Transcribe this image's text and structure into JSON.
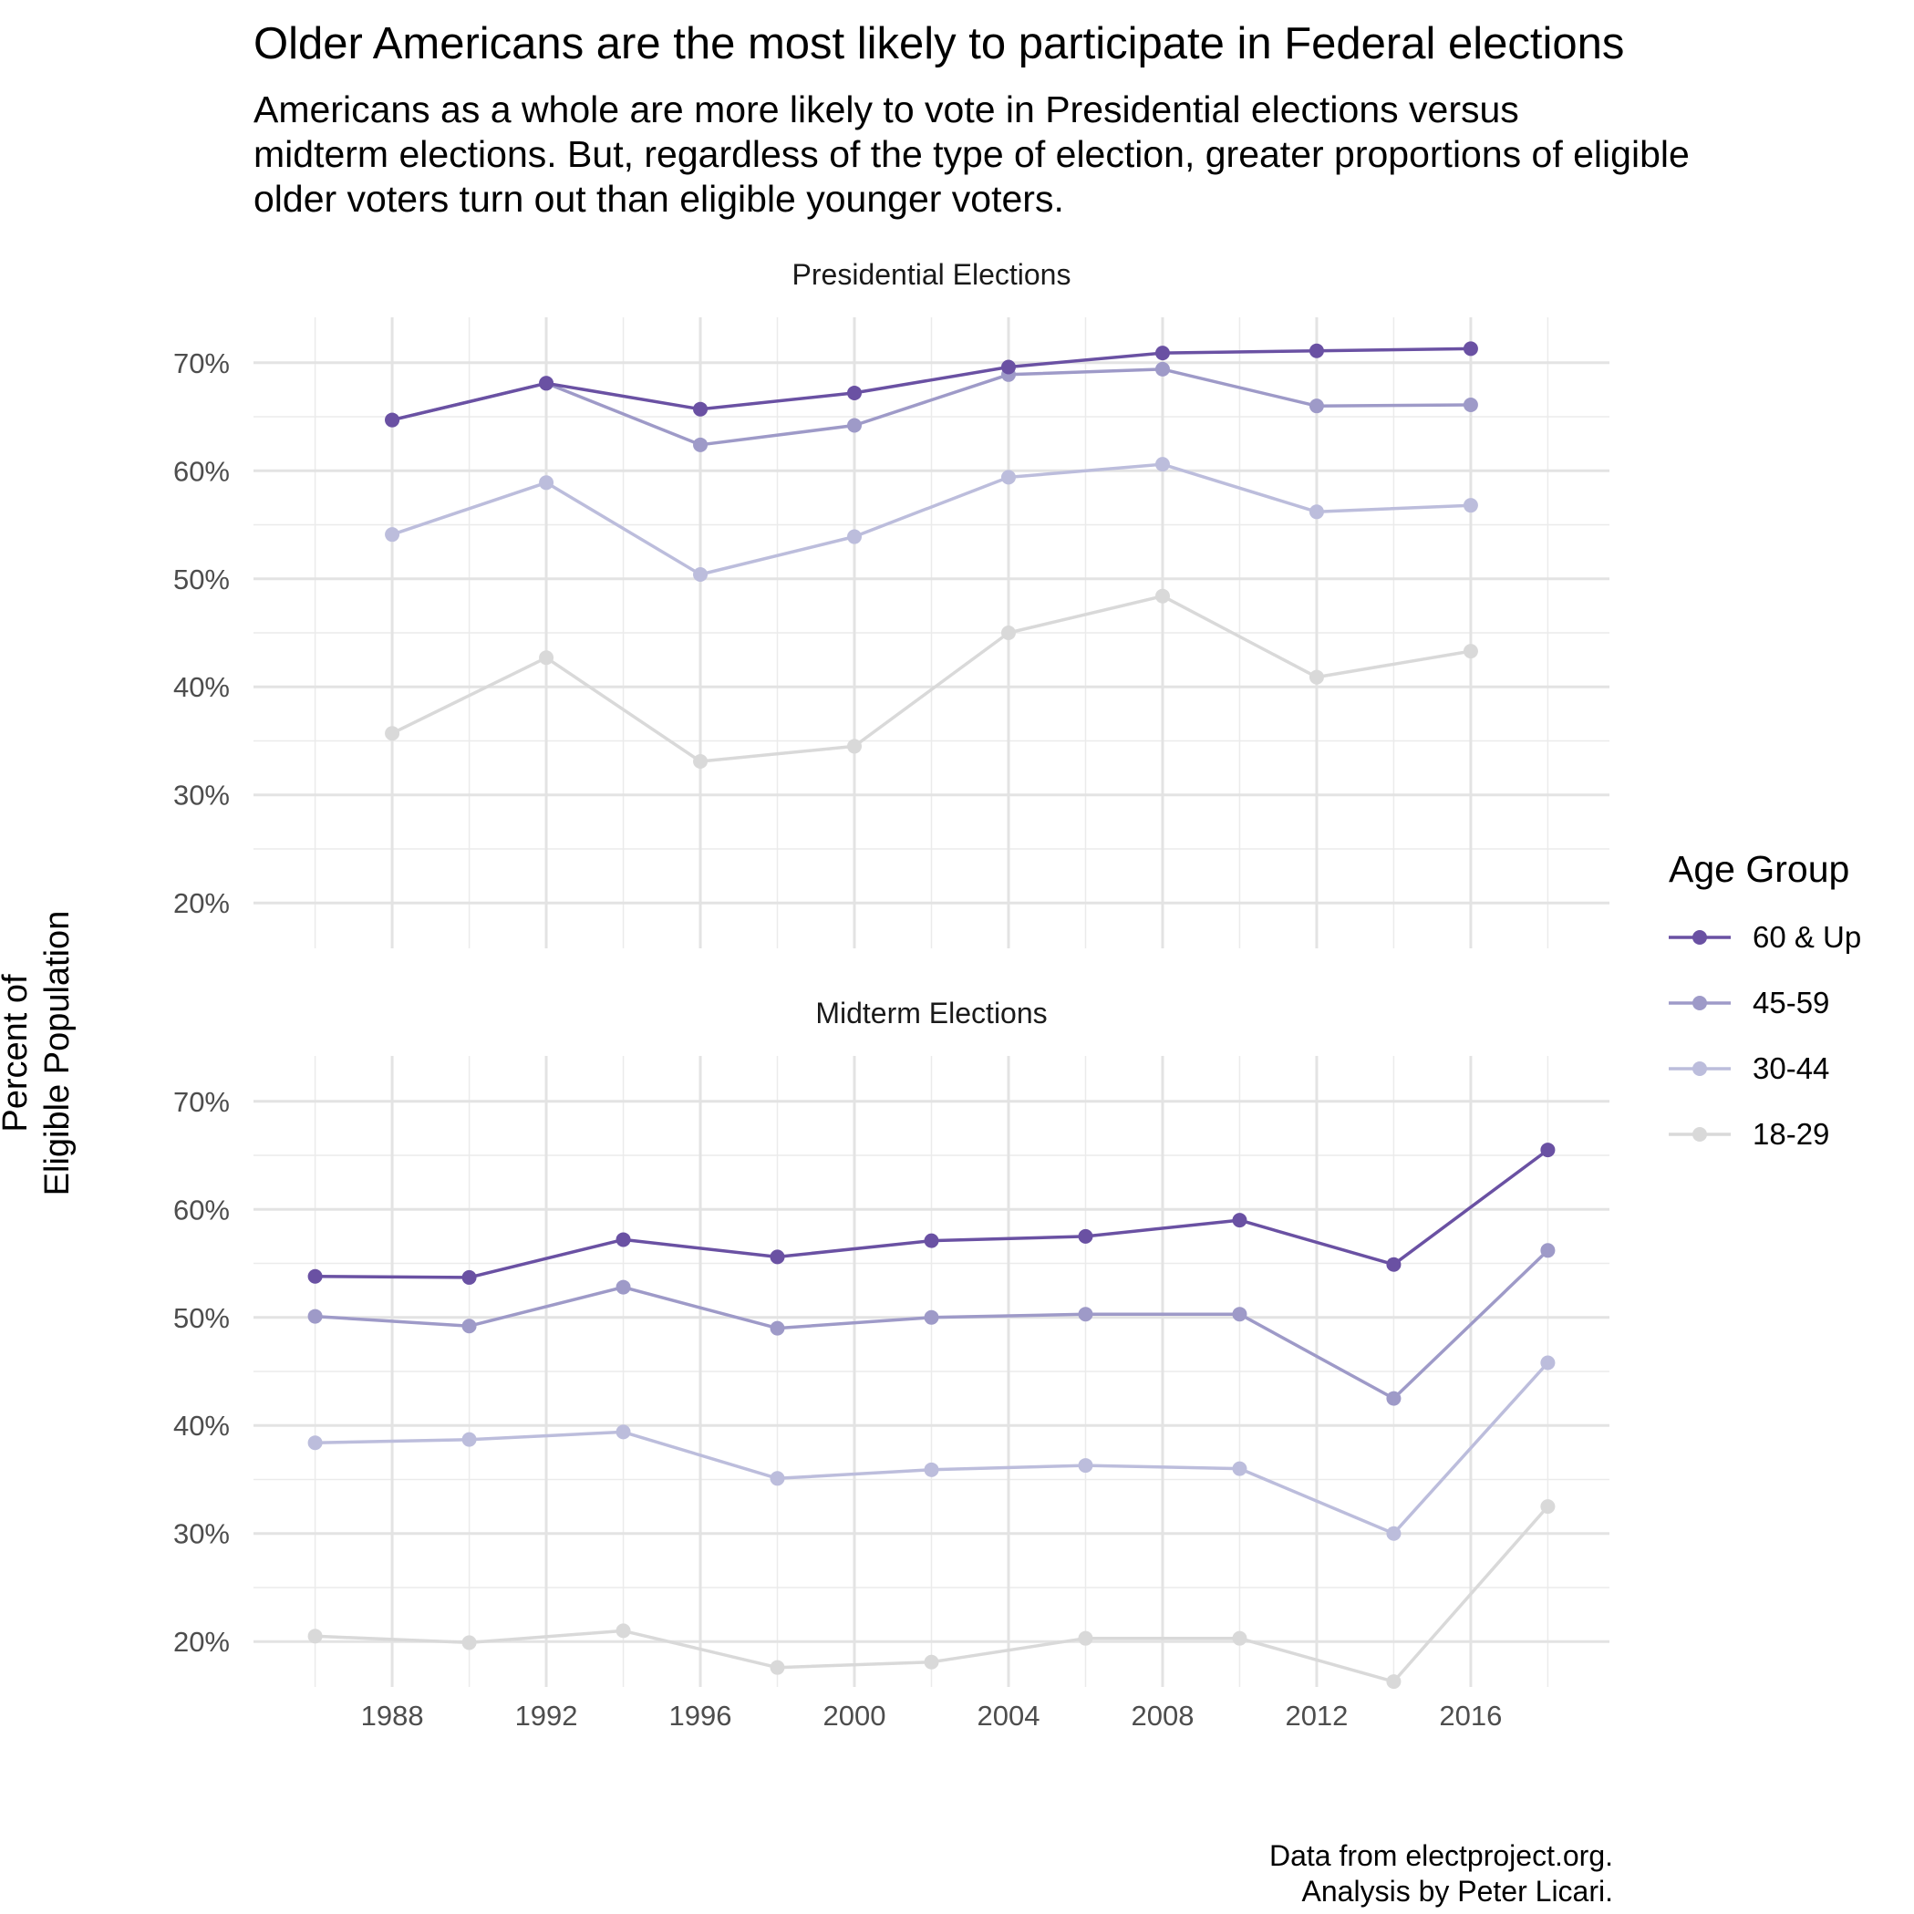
{
  "title": "Older Americans are the most likely to participate in Federal elections",
  "subtitle": [
    "Americans as a whole are more likely to vote in Presidential elections versus",
    "midterm elections. But, regardless of the type of election, greater proportions of eligible",
    "older voters turn out than eligible younger voters."
  ],
  "caption": [
    "Data from electproject.org.",
    "Analysis by Peter Licari."
  ],
  "ylabel": [
    "Percent of",
    "Eligible Population"
  ],
  "legend": {
    "title": "Age Group",
    "items": [
      {
        "label": "60 & Up",
        "color": "#6a51a3"
      },
      {
        "label": "45-59",
        "color": "#9e9ac8"
      },
      {
        "label": "30-44",
        "color": "#bcbddc"
      },
      {
        "label": "18-29",
        "color": "#d9d9d9"
      }
    ]
  },
  "chart_data": {
    "type": "line",
    "facets": [
      "Presidential Elections",
      "Midterm Elections"
    ],
    "x_ticks": [
      1988,
      1992,
      1996,
      2000,
      2004,
      2008,
      2012,
      2016
    ],
    "y_ticks": [
      "20%",
      "30%",
      "40%",
      "50%",
      "60%",
      "70%"
    ],
    "y_tick_values": [
      20,
      30,
      40,
      50,
      60,
      70
    ],
    "xlim": [
      1984.4,
      2019.6
    ],
    "ylim": [
      15.8,
      74.2
    ],
    "grid": true,
    "legend_position": "right",
    "panels": [
      {
        "name": "Presidential Elections",
        "x": [
          1988,
          1992,
          1996,
          2000,
          2004,
          2008,
          2012,
          2016
        ],
        "series": [
          {
            "name": "18-29",
            "values": [
              35.7,
              42.7,
              33.1,
              34.5,
              45.0,
              48.4,
              40.9,
              43.3
            ]
          },
          {
            "name": "30-44",
            "values": [
              54.1,
              58.9,
              50.4,
              53.9,
              59.4,
              60.6,
              56.2,
              56.8
            ]
          },
          {
            "name": "45-59",
            "values": [
              64.7,
              68.1,
              62.4,
              64.2,
              68.9,
              69.4,
              66.0,
              66.1
            ]
          },
          {
            "name": "60 & Up",
            "values": [
              64.7,
              68.1,
              65.7,
              67.2,
              69.6,
              70.9,
              71.1,
              71.3
            ]
          }
        ]
      },
      {
        "name": "Midterm Elections",
        "x": [
          1986,
          1990,
          1994,
          1998,
          2002,
          2006,
          2010,
          2014,
          2018
        ],
        "series": [
          {
            "name": "18-29",
            "values": [
              20.5,
              19.9,
              21.0,
              17.6,
              18.1,
              20.3,
              20.3,
              16.3,
              32.5
            ]
          },
          {
            "name": "30-44",
            "values": [
              38.4,
              38.7,
              39.4,
              35.1,
              35.9,
              36.3,
              36.0,
              30.0,
              45.8
            ]
          },
          {
            "name": "45-59",
            "values": [
              50.1,
              49.2,
              52.8,
              49.0,
              50.0,
              50.3,
              50.3,
              42.5,
              56.2
            ]
          },
          {
            "name": "60 & Up",
            "values": [
              53.8,
              53.7,
              57.2,
              55.6,
              57.1,
              57.5,
              59.0,
              54.9,
              65.5
            ]
          }
        ]
      }
    ]
  }
}
